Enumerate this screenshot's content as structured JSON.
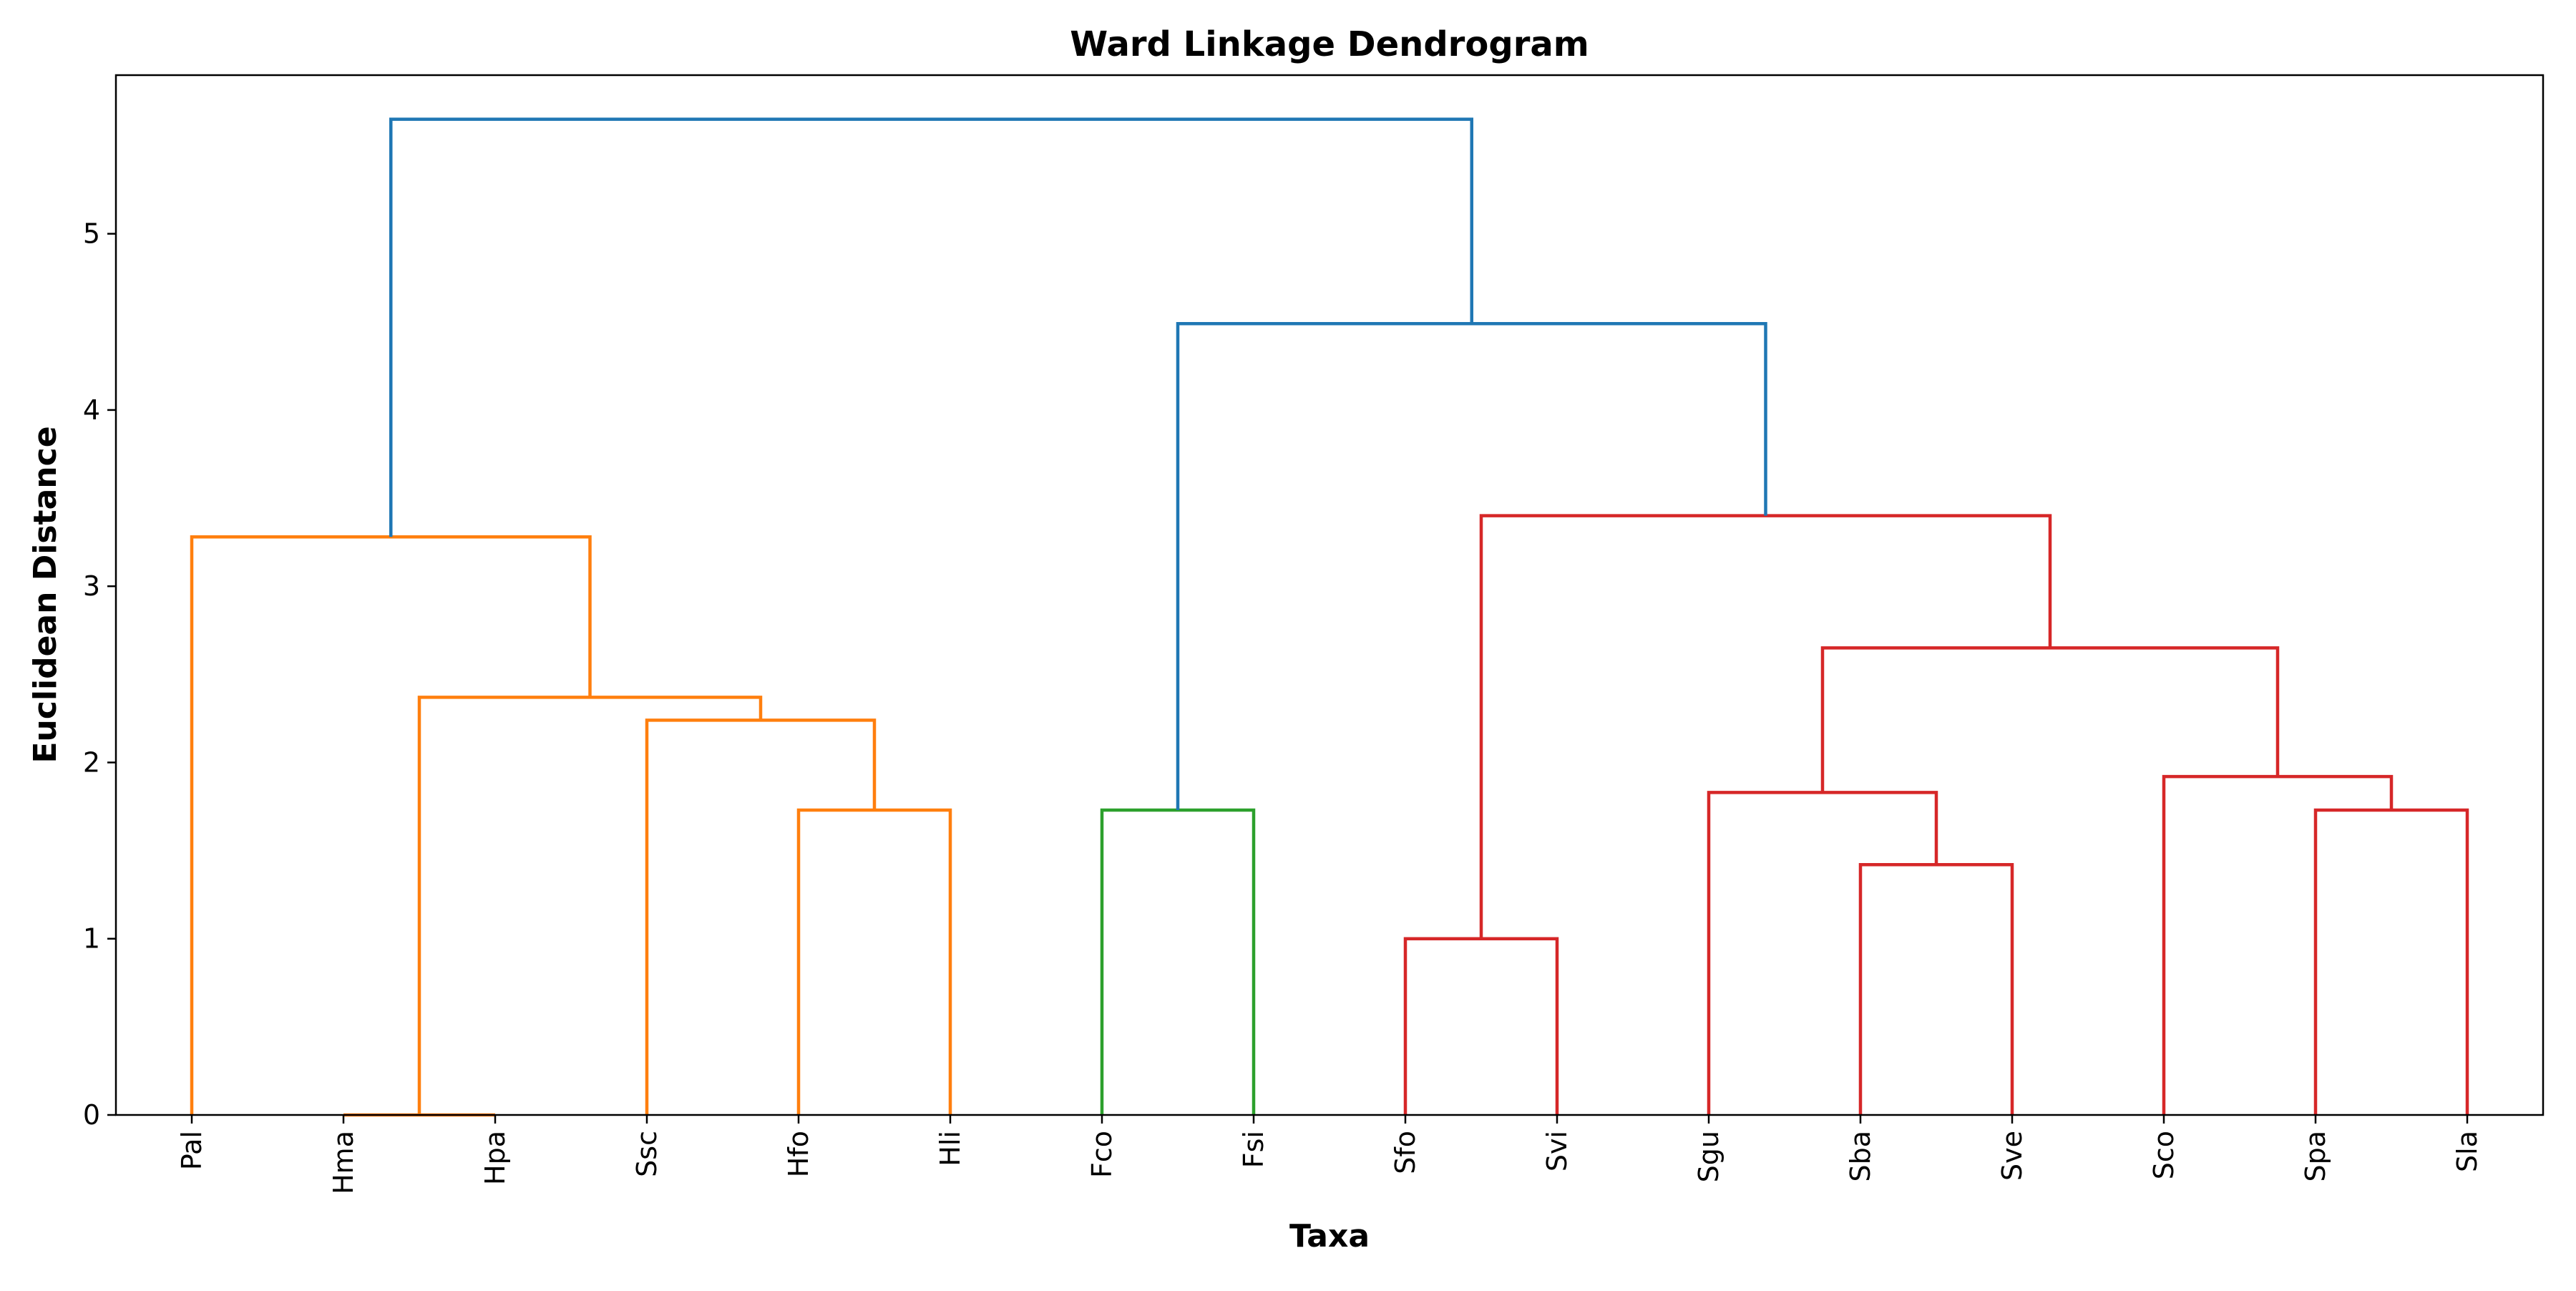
{
  "chart_data": {
    "type": "dendrogram",
    "title": "Ward Linkage Dendrogram",
    "xlabel": "Taxa",
    "ylabel": "Euclidean Distance",
    "ylim": [
      0,
      5.9
    ],
    "yticks": [
      "0",
      "1",
      "2",
      "3",
      "4",
      "5"
    ],
    "grid": false,
    "leaves": [
      "Pal",
      "Hma",
      "Hpa",
      "Ssc",
      "Hfo",
      "Hli",
      "Fco",
      "Fsi",
      "Sfo",
      "Svi",
      "Sgu",
      "Sba",
      "Sve",
      "Sco",
      "Spa",
      "Sla"
    ],
    "merges": [
      {
        "left": "Hma",
        "right": "Hpa",
        "height": 0.0,
        "color": "#ff7f0e"
      },
      {
        "left": "Sfo",
        "right": "Svi",
        "height": 1.0,
        "color": "#d62728"
      },
      {
        "left": "Sba",
        "right": "Sve",
        "height": 1.42,
        "color": "#d62728"
      },
      {
        "left": "Hfo",
        "right": "Hli",
        "height": 1.73,
        "color": "#ff7f0e"
      },
      {
        "left": "Fco",
        "right": "Fsi",
        "height": 1.73,
        "color": "#2ca02c"
      },
      {
        "left": "Spa",
        "right": "Sla",
        "height": 1.73,
        "color": "#d62728"
      },
      {
        "left": "Sgu",
        "right": "(Sba,Sve)",
        "height": 1.83,
        "color": "#d62728"
      },
      {
        "left": "Sco",
        "right": "(Spa,Sla)",
        "height": 1.92,
        "color": "#d62728"
      },
      {
        "left": "Ssc",
        "right": "(Hfo,Hli)",
        "height": 2.24,
        "color": "#ff7f0e"
      },
      {
        "left": "(Hma,Hpa)",
        "right": "(Ssc,(Hfo,Hli))",
        "height": 2.37,
        "color": "#ff7f0e"
      },
      {
        "left": "(Sgu,(Sba,Sve))",
        "right": "(Sco,(Spa,Sla))",
        "height": 2.65,
        "color": "#d62728"
      },
      {
        "left": "Pal",
        "right": "((Hma,Hpa),(Ssc,(Hfo,Hli)))",
        "height": 3.28,
        "color": "#ff7f0e"
      },
      {
        "left": "(Sfo,Svi)",
        "right": "((Sgu,(Sba,Sve)),(Sco,(Spa,Sla)))",
        "height": 3.4,
        "color": "#d62728"
      },
      {
        "left": "(Fco,Fsi)",
        "right": "((Sfo,Svi),(...))",
        "height": 4.49,
        "color": "#1f77b4"
      },
      {
        "left": "(Pal,...)",
        "right": "((Fco,Fsi),(...))",
        "height": 5.65,
        "color": "#1f77b4"
      }
    ]
  }
}
